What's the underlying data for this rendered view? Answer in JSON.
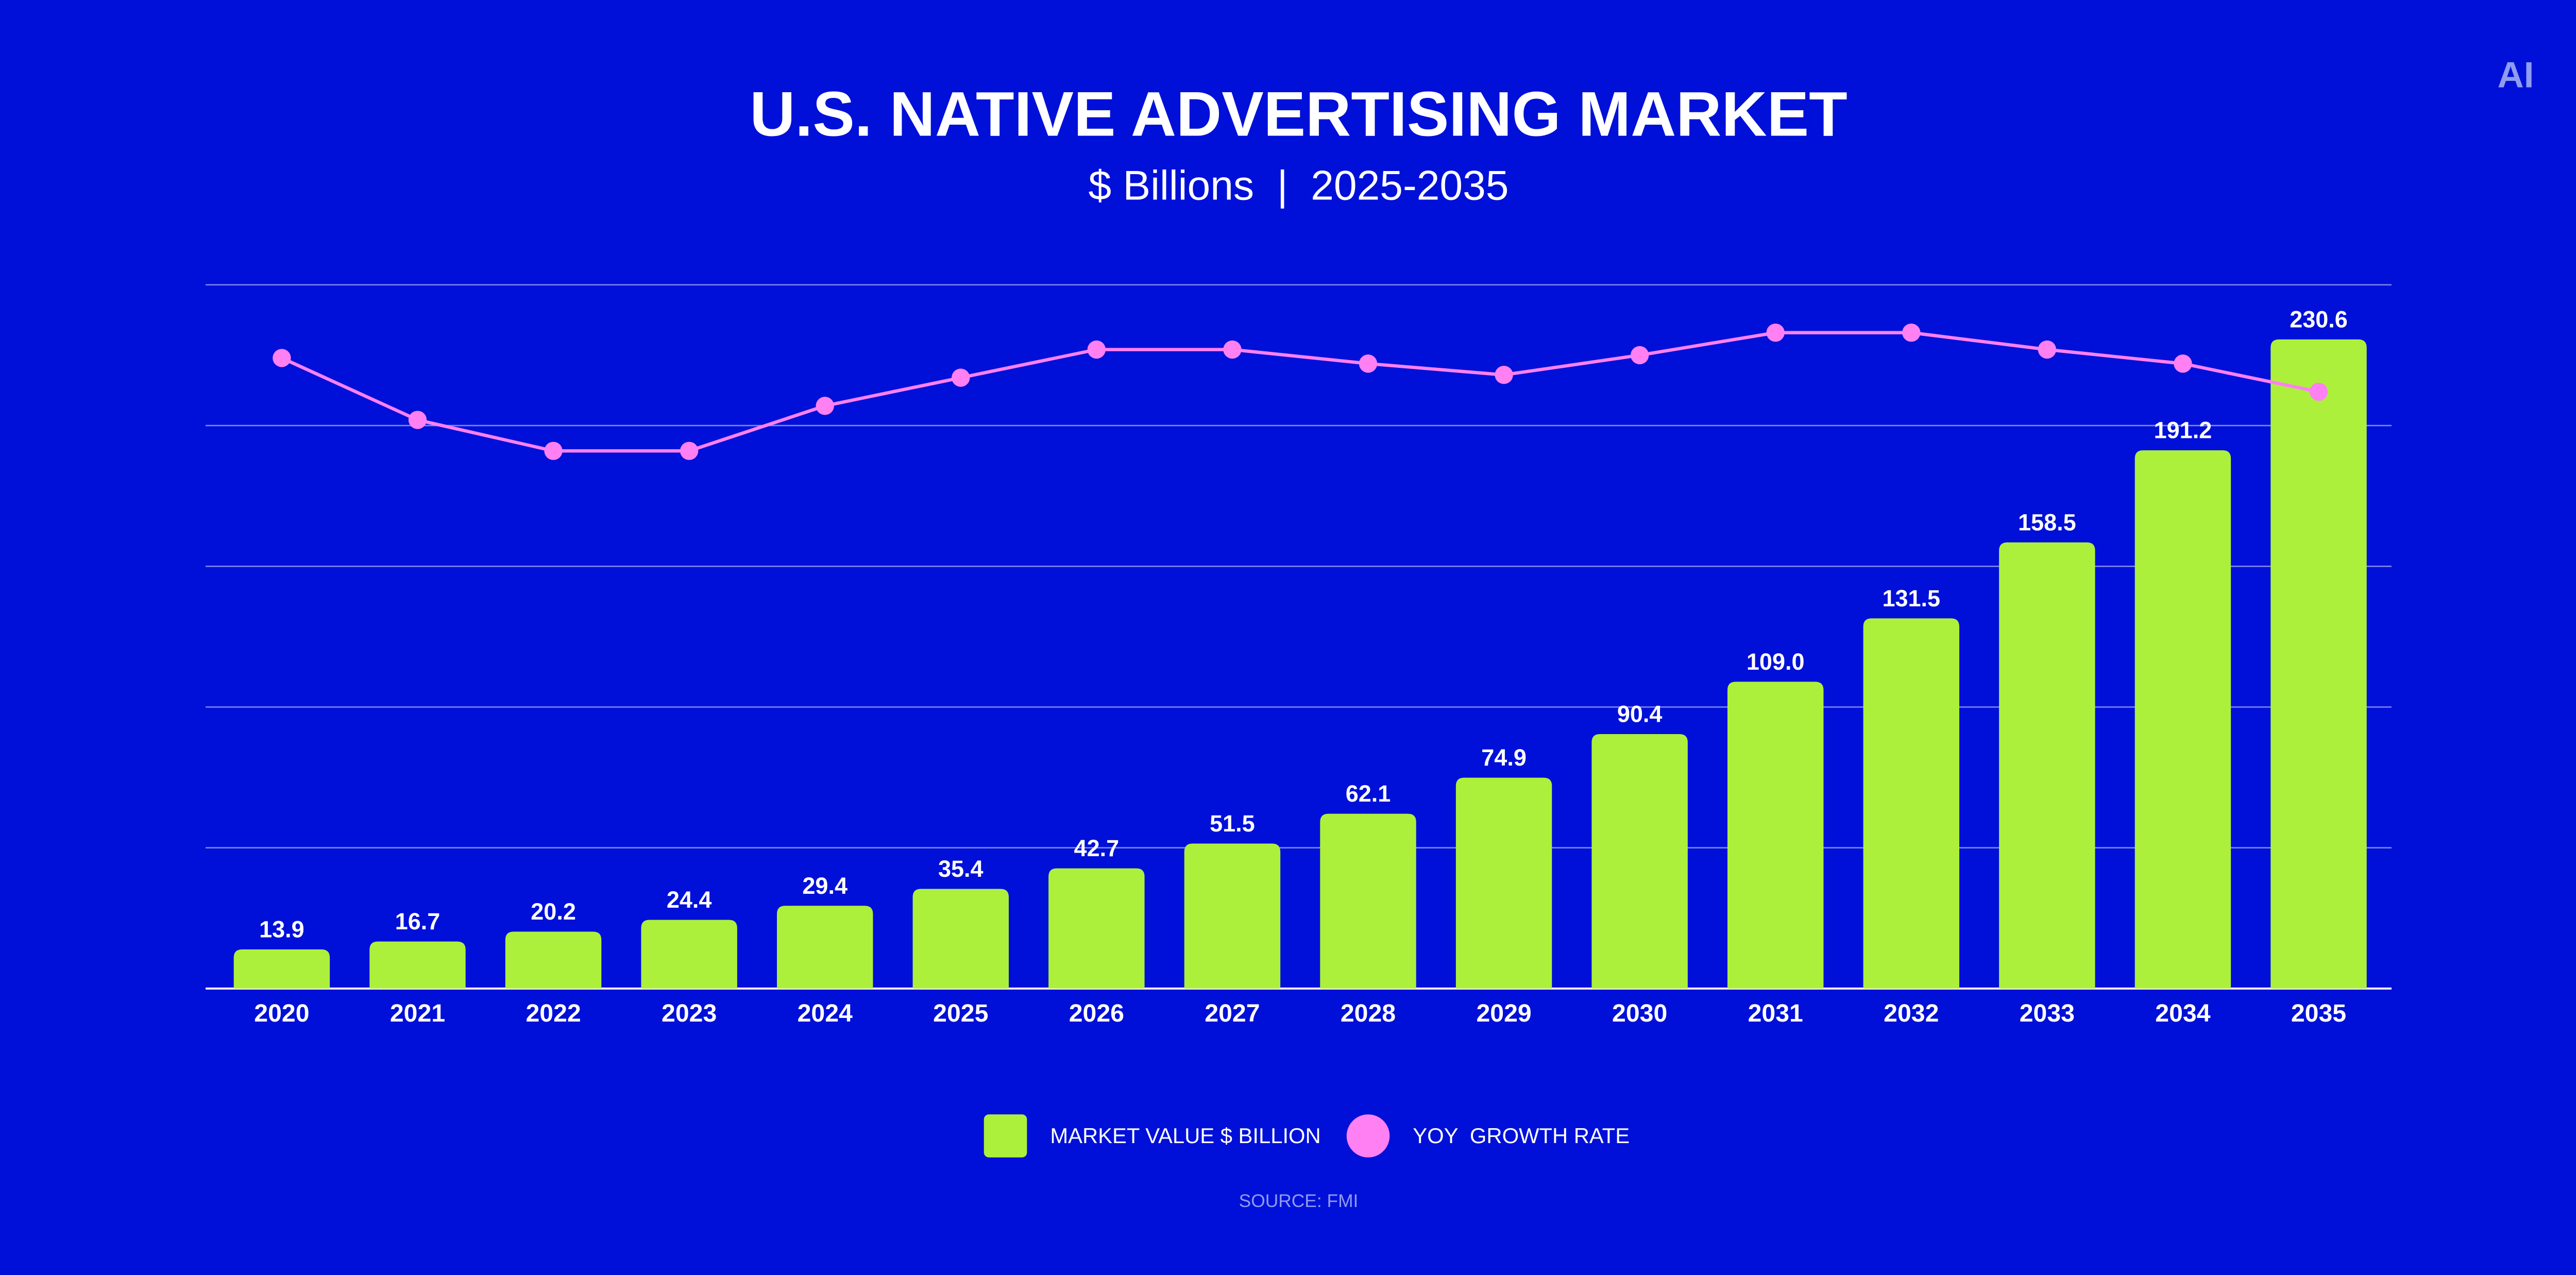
{
  "chart_data": {
    "type": "bar",
    "title": "U.S. NATIVE ADVERTISING MARKET",
    "subtitle": "$ Billions  |  2025-2035",
    "logo": "AI",
    "source": "SOURCE: FMI",
    "categories": [
      "2020",
      "2021",
      "2022",
      "2023",
      "2024",
      "2025",
      "2026",
      "2027",
      "2028",
      "2029",
      "2030",
      "2031",
      "2032",
      "2033",
      "2034",
      "2035"
    ],
    "series": [
      {
        "name": "MARKET VALUE $ BILLION",
        "color": "#adf03c",
        "values": [
          13.9,
          16.7,
          20.2,
          24.4,
          29.4,
          35.4,
          42.7,
          51.5,
          62.1,
          74.9,
          90.4,
          109.0,
          131.5,
          158.5,
          191.2,
          230.6
        ],
        "value_labels": [
          "13.9",
          "16.7",
          "20.2",
          "24.4",
          "29.4",
          "35.4",
          "42.7",
          "51.5",
          "62.1",
          "74.9",
          "90.4",
          "109.0",
          "131.5",
          "158.5",
          "191.2",
          "230.6"
        ]
      },
      {
        "name": "YOY  GROWTH RATE",
        "type": "line",
        "axis": "y2",
        "color": "#ff80f2",
        "values": [
          22.4,
          20.2,
          19.1,
          19.1,
          20.7,
          21.7,
          22.7,
          22.7,
          22.2,
          21.8,
          22.5,
          23.3,
          23.3,
          22.7,
          22.2,
          21.2
        ]
      }
    ],
    "ylim": [
      0,
      250
    ],
    "yticks": [
      0,
      50,
      100,
      150,
      200,
      250
    ],
    "y2lim": [
      0,
      25
    ],
    "grid": true
  }
}
